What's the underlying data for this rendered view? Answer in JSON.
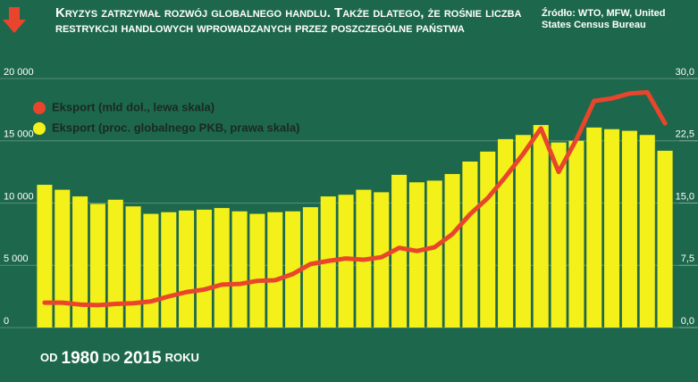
{
  "chart_data": {
    "type": "bar-line",
    "title": "Kryzys zatrzymał rozwój globalnego handlu. Także dlatego, że rośnie liczba restrykcji handlowych wprowadzanych przez poszczególne państwa",
    "source": "Źródło: WTO, MFW, United States Census Bureau",
    "footer": [
      "OD",
      "1980",
      "DO",
      "2015",
      "ROKU"
    ],
    "series": [
      {
        "name": "Eksport (mld dol., lewa skala)",
        "color": "#e8452c",
        "kind": "line",
        "values": [
          2000,
          2000,
          1850,
          1800,
          1900,
          1950,
          2100,
          2500,
          2850,
          3050,
          3450,
          3500,
          3750,
          3800,
          4300,
          5100,
          5350,
          5550,
          5450,
          5650,
          6400,
          6150,
          6450,
          7500,
          9100,
          10400,
          12100,
          13950,
          16000,
          12500,
          15100,
          18200,
          18400,
          18800,
          18900,
          16400
        ]
      },
      {
        "name": "Eksport (proc. globalnego PKB, prawa skala)",
        "color": "#f3f01a",
        "kind": "bar",
        "axis": "y2",
        "values": [
          17.2,
          16.6,
          15.8,
          14.9,
          15.4,
          14.6,
          13.7,
          13.9,
          14.1,
          14.2,
          14.4,
          14.0,
          13.7,
          13.9,
          14.0,
          14.5,
          15.8,
          16.0,
          16.6,
          16.3,
          18.4,
          17.5,
          17.7,
          18.5,
          20.0,
          21.2,
          22.7,
          23.2,
          24.4,
          22.3,
          22.5,
          24.1,
          23.9,
          23.7,
          23.2,
          21.3
        ]
      }
    ],
    "ylim": [
      0,
      20000
    ],
    "yticks": [
      {
        "value": 0,
        "label": "0"
      },
      {
        "value": 5000,
        "label": "5 000"
      },
      {
        "value": 10000,
        "label": "10 000"
      },
      {
        "value": 15000,
        "label": "15 000"
      },
      {
        "value": 20000,
        "label": "20 000"
      }
    ],
    "y2lim": [
      0,
      30
    ],
    "y2ticks": [
      {
        "value": 0,
        "label": "0,0"
      },
      {
        "value": 7.5,
        "label": "7,5"
      },
      {
        "value": 15,
        "label": "15,0"
      },
      {
        "value": 22.5,
        "label": "22,5"
      },
      {
        "value": 30,
        "label": "30,0"
      }
    ],
    "grid": true
  }
}
